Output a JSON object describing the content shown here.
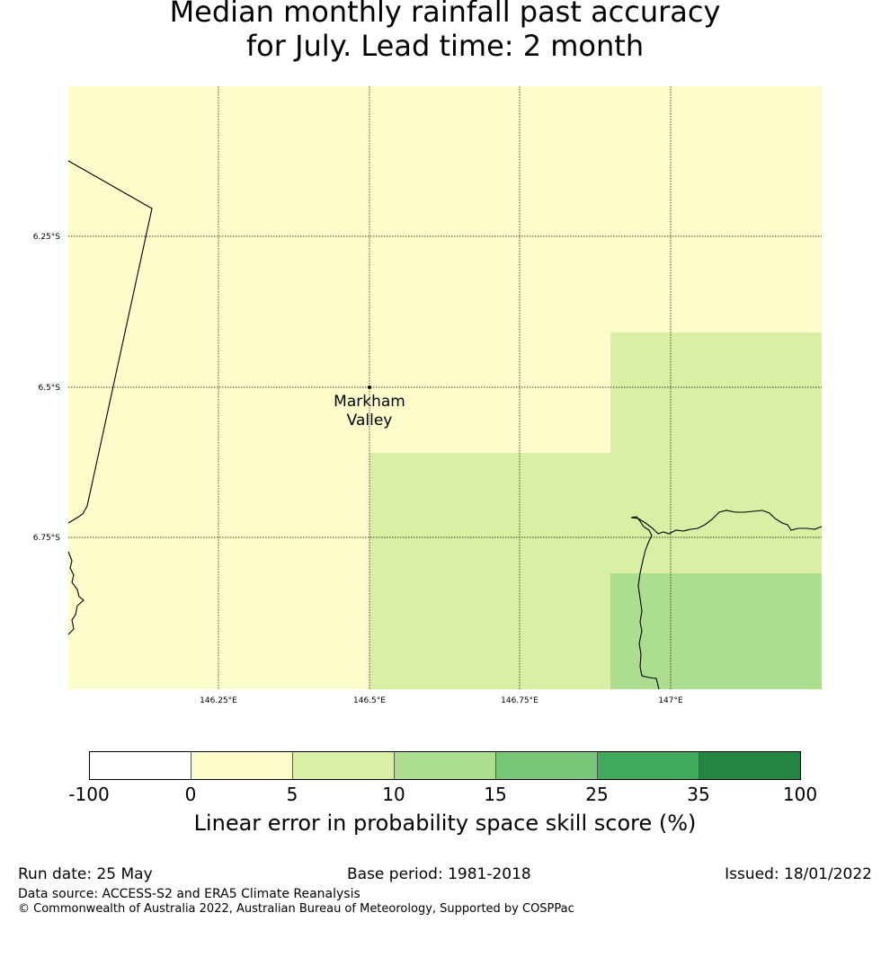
{
  "title": {
    "line1": "Median monthly rainfall past accuracy",
    "line2": "for July. Lead time: 2 month"
  },
  "map": {
    "lon_ticks": [
      "146.25°E",
      "146.5°E",
      "146.75°E",
      "147°E"
    ],
    "lat_ticks": [
      "6.25°S",
      "6.5°S",
      "6.75°S"
    ],
    "location": {
      "name_line1": "Markham",
      "name_line2": "Valley"
    }
  },
  "colorbar": {
    "ticks": [
      "-100",
      "0",
      "5",
      "10",
      "15",
      "25",
      "35",
      "100"
    ],
    "colors": [
      "#ffffff",
      "#fdfdcb",
      "#d9efa4",
      "#addd8e",
      "#78c679",
      "#41ab5d",
      "#238443"
    ],
    "label": "Linear error in probability space skill score (%)"
  },
  "footer": {
    "run_date": "Run date: 25 May",
    "base_period": "Base period: 1981-2018",
    "issued": "Issued: 18/01/2022",
    "data_source": "Data source: ACCESS-S2 and ERA5 Climate Reanalysis",
    "copyright": "© Commonwealth of Australia 2022, Australian Bureau of Meteorology, Supported by COSPPac"
  }
}
